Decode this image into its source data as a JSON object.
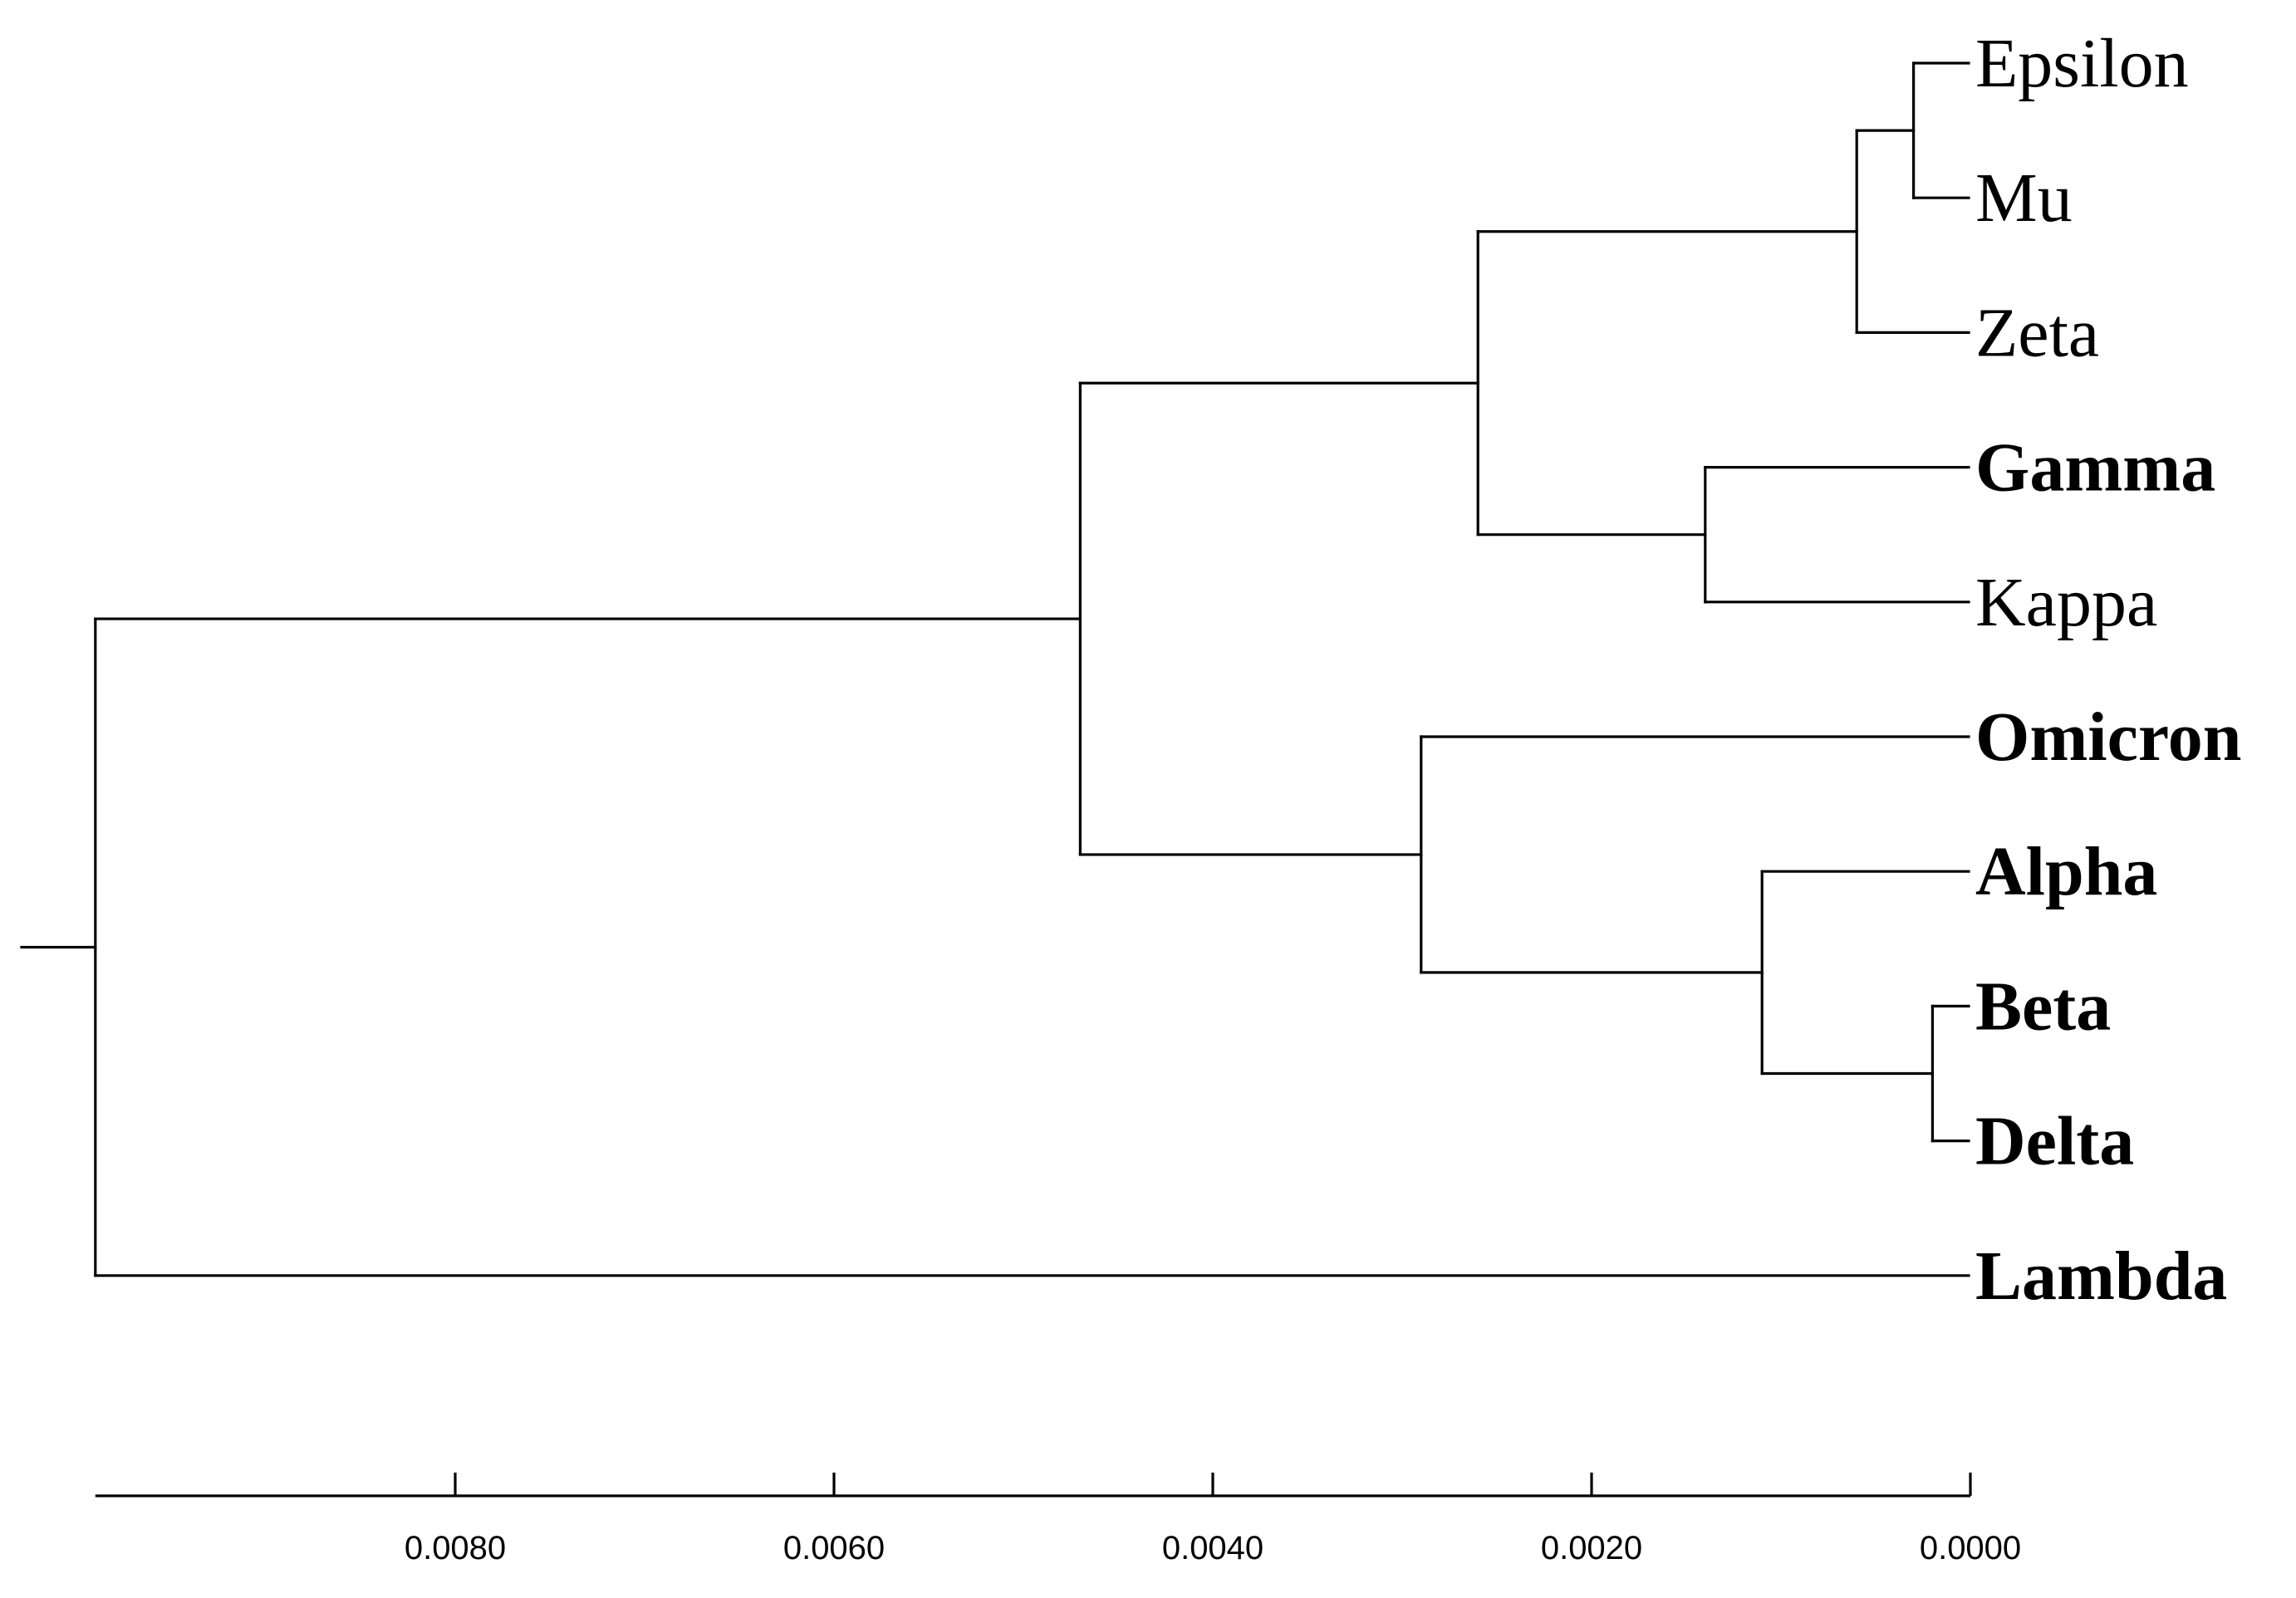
{
  "chart_data": {
    "type": "dendrogram",
    "orientation": "leaves-right",
    "x_axis": {
      "ticks": [
        0.008,
        0.006,
        0.004,
        0.002,
        0.0
      ],
      "tick_labels": [
        "0.0080",
        "0.0060",
        "0.0040",
        "0.0020",
        "0.0000"
      ],
      "range": [
        0.0099,
        0.0
      ]
    },
    "leaves": [
      {
        "id": "epsilon",
        "label": "Epsilon",
        "bold": false
      },
      {
        "id": "mu",
        "label": "Mu",
        "bold": false
      },
      {
        "id": "zeta",
        "label": "Zeta",
        "bold": false
      },
      {
        "id": "gamma",
        "label": "Gamma",
        "bold": true
      },
      {
        "id": "kappa",
        "label": "Kappa",
        "bold": false
      },
      {
        "id": "omicron",
        "label": "Omicron",
        "bold": true
      },
      {
        "id": "alpha",
        "label": "Alpha",
        "bold": true
      },
      {
        "id": "beta",
        "label": "Beta",
        "bold": true
      },
      {
        "id": "delta",
        "label": "Delta",
        "bold": true
      },
      {
        "id": "lambda",
        "label": "Lambda",
        "bold": true
      }
    ],
    "clusters": [
      {
        "id": "c_eps_mu",
        "children": [
          "epsilon",
          "mu"
        ],
        "height": 0.0003
      },
      {
        "id": "c_eps_mu_zeta",
        "children": [
          "c_eps_mu",
          "zeta"
        ],
        "height": 0.0006
      },
      {
        "id": "c_gamma_kappa",
        "children": [
          "gamma",
          "kappa"
        ],
        "height": 0.0014
      },
      {
        "id": "c_upper",
        "children": [
          "c_eps_mu_zeta",
          "c_gamma_kappa"
        ],
        "height": 0.0026
      },
      {
        "id": "c_beta_delta",
        "children": [
          "beta",
          "delta"
        ],
        "height": 0.0002
      },
      {
        "id": "c_alpha_bd",
        "children": [
          "alpha",
          "c_beta_delta"
        ],
        "height": 0.0011
      },
      {
        "id": "c_lower",
        "children": [
          "omicron",
          "c_alpha_bd"
        ],
        "height": 0.0029
      },
      {
        "id": "c_main",
        "children": [
          "c_upper",
          "c_lower"
        ],
        "height": 0.0047
      },
      {
        "id": "root",
        "children": [
          "c_main",
          "lambda"
        ],
        "height": 0.0099
      }
    ]
  }
}
